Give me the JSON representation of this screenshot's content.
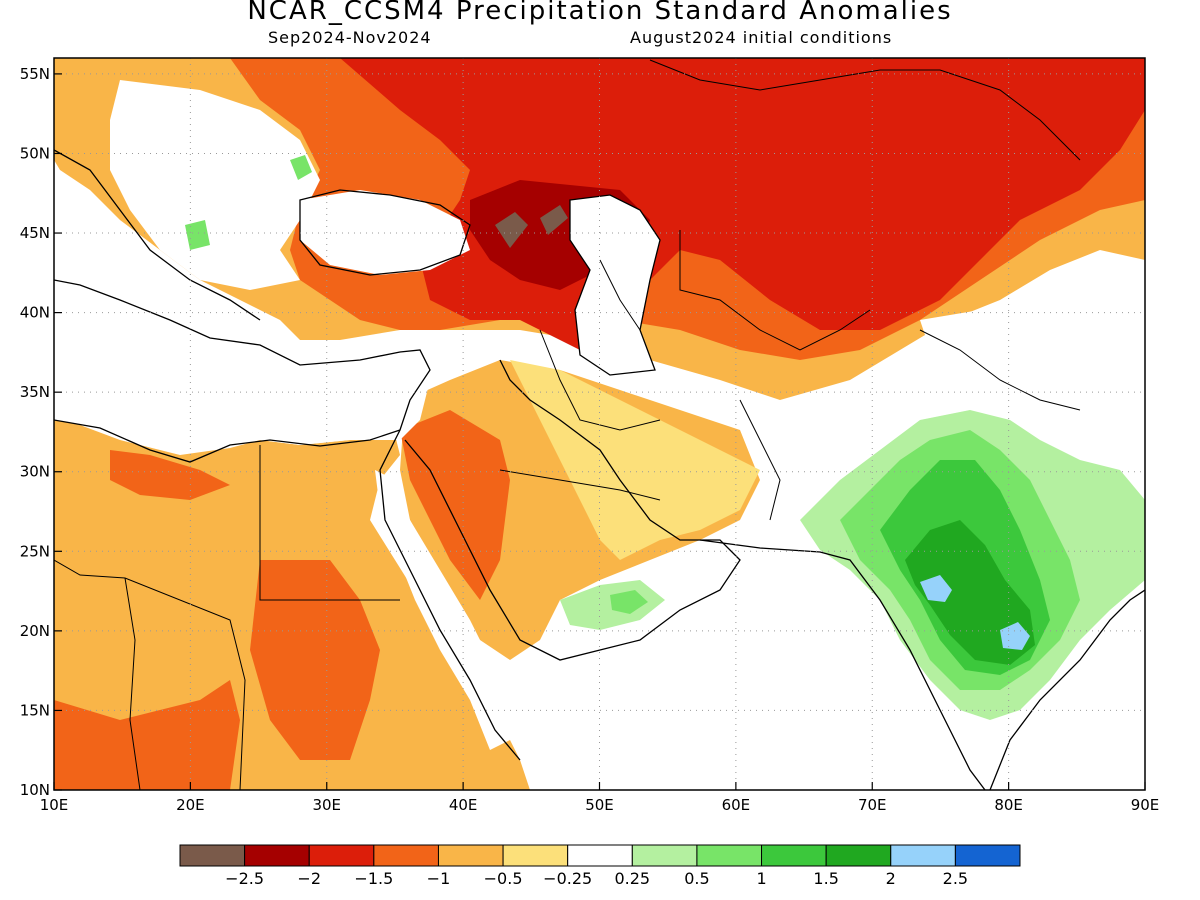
{
  "title": "NCAR_CCSM4 Precipitation Standard Anomalies",
  "subtitle_period": "Sep2024-Nov2024",
  "subtitle_ic": "August2024 initial conditions",
  "axes": {
    "lon_labels": [
      "10E",
      "20E",
      "30E",
      "40E",
      "50E",
      "60E",
      "70E",
      "80E",
      "90E"
    ],
    "lat_labels": [
      "55N",
      "50N",
      "45N",
      "40N",
      "35N",
      "30N",
      "25N",
      "20N",
      "15N",
      "10N"
    ],
    "lon_range": [
      10,
      90
    ],
    "lat_range": [
      10,
      56
    ],
    "grid": "dotted"
  },
  "colorbar": {
    "colors": [
      "#7a5a4a",
      "#a50000",
      "#dc1e0a",
      "#f26418",
      "#f9b548",
      "#fce07a",
      "#ffffff",
      "#b4f0a0",
      "#78e468",
      "#3cc83c",
      "#20a820",
      "#96d2fa",
      "#1464d2"
    ],
    "labels": [
      "−2.5",
      "−2",
      "−1.5",
      "−1",
      "−0.5",
      "−0.25",
      "0.25",
      "0.5",
      "1",
      "1.5",
      "2",
      "2.5"
    ]
  }
}
